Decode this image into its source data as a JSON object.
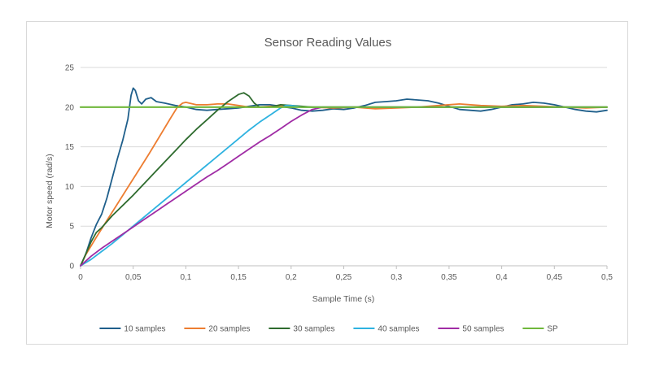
{
  "chart_data": {
    "type": "line",
    "title": "Sensor Reading Values",
    "xlabel": "Sample Time (s)",
    "ylabel": "Motor speed (rad/s)",
    "xlim": [
      0,
      0.5
    ],
    "ylim": [
      0,
      25
    ],
    "x_ticks": [
      "0",
      "0,05",
      "0,1",
      "0,15",
      "0,2",
      "0,25",
      "0,3",
      "0,35",
      "0,4",
      "0,45",
      "0,5"
    ],
    "y_ticks": [
      "0",
      "5",
      "10",
      "15",
      "20",
      "25"
    ],
    "grid": "horizontal",
    "legend_position": "bottom",
    "series": [
      {
        "name": "10 samples",
        "color": "#1f5f8b",
        "points": [
          [
            0,
            0
          ],
          [
            0.005,
            1.5
          ],
          [
            0.01,
            3.5
          ],
          [
            0.015,
            5.2
          ],
          [
            0.02,
            6.5
          ],
          [
            0.025,
            8.5
          ],
          [
            0.03,
            11
          ],
          [
            0.035,
            13.5
          ],
          [
            0.04,
            15.8
          ],
          [
            0.045,
            18.5
          ],
          [
            0.048,
            21.5
          ],
          [
            0.05,
            22.4
          ],
          [
            0.052,
            22.1
          ],
          [
            0.055,
            20.8
          ],
          [
            0.058,
            20.4
          ],
          [
            0.062,
            21.0
          ],
          [
            0.067,
            21.2
          ],
          [
            0.072,
            20.7
          ],
          [
            0.08,
            20.5
          ],
          [
            0.09,
            20.2
          ],
          [
            0.1,
            20.0
          ],
          [
            0.11,
            19.7
          ],
          [
            0.12,
            19.6
          ],
          [
            0.13,
            19.7
          ],
          [
            0.14,
            19.8
          ],
          [
            0.15,
            19.9
          ],
          [
            0.16,
            20.1
          ],
          [
            0.17,
            20.3
          ],
          [
            0.18,
            20.3
          ],
          [
            0.19,
            20.1
          ],
          [
            0.2,
            19.9
          ],
          [
            0.21,
            19.6
          ],
          [
            0.22,
            19.5
          ],
          [
            0.23,
            19.6
          ],
          [
            0.24,
            19.8
          ],
          [
            0.25,
            19.7
          ],
          [
            0.26,
            19.9
          ],
          [
            0.27,
            20.2
          ],
          [
            0.28,
            20.6
          ],
          [
            0.29,
            20.7
          ],
          [
            0.3,
            20.8
          ],
          [
            0.31,
            21.0
          ],
          [
            0.32,
            20.9
          ],
          [
            0.33,
            20.8
          ],
          [
            0.34,
            20.5
          ],
          [
            0.35,
            20.1
          ],
          [
            0.36,
            19.7
          ],
          [
            0.37,
            19.6
          ],
          [
            0.38,
            19.5
          ],
          [
            0.39,
            19.7
          ],
          [
            0.4,
            20.0
          ],
          [
            0.41,
            20.3
          ],
          [
            0.42,
            20.4
          ],
          [
            0.43,
            20.6
          ],
          [
            0.44,
            20.5
          ],
          [
            0.45,
            20.3
          ],
          [
            0.46,
            20.0
          ],
          [
            0.47,
            19.7
          ],
          [
            0.48,
            19.5
          ],
          [
            0.49,
            19.4
          ],
          [
            0.5,
            19.6
          ]
        ]
      },
      {
        "name": "20 samples",
        "color": "#ed7d31",
        "points": [
          [
            0,
            0
          ],
          [
            0.005,
            1.4
          ],
          [
            0.015,
            3.6
          ],
          [
            0.025,
            5.7
          ],
          [
            0.035,
            7.8
          ],
          [
            0.045,
            9.9
          ],
          [
            0.055,
            12.0
          ],
          [
            0.065,
            14.1
          ],
          [
            0.075,
            16.3
          ],
          [
            0.085,
            18.5
          ],
          [
            0.092,
            20.0
          ],
          [
            0.097,
            20.5
          ],
          [
            0.1,
            20.6
          ],
          [
            0.11,
            20.3
          ],
          [
            0.12,
            20.3
          ],
          [
            0.13,
            20.4
          ],
          [
            0.14,
            20.4
          ],
          [
            0.15,
            20.2
          ],
          [
            0.16,
            20.0
          ],
          [
            0.17,
            20.0
          ],
          [
            0.18,
            20.1
          ],
          [
            0.2,
            20.1
          ],
          [
            0.22,
            20.0
          ],
          [
            0.24,
            19.9
          ],
          [
            0.26,
            20.0
          ],
          [
            0.28,
            19.8
          ],
          [
            0.3,
            19.9
          ],
          [
            0.32,
            20.0
          ],
          [
            0.34,
            20.2
          ],
          [
            0.36,
            20.4
          ],
          [
            0.38,
            20.2
          ],
          [
            0.4,
            20.1
          ],
          [
            0.42,
            20.2
          ],
          [
            0.44,
            20.1
          ],
          [
            0.46,
            20.0
          ],
          [
            0.48,
            19.9
          ],
          [
            0.5,
            20.0
          ]
        ]
      },
      {
        "name": "30 samples",
        "color": "#2e6b2e",
        "points": [
          [
            0,
            0
          ],
          [
            0.005,
            1.5
          ],
          [
            0.01,
            3.0
          ],
          [
            0.015,
            4.2
          ],
          [
            0.02,
            4.8
          ],
          [
            0.03,
            6.3
          ],
          [
            0.04,
            7.6
          ],
          [
            0.05,
            8.9
          ],
          [
            0.06,
            10.3
          ],
          [
            0.07,
            11.7
          ],
          [
            0.08,
            13.1
          ],
          [
            0.09,
            14.5
          ],
          [
            0.1,
            15.9
          ],
          [
            0.11,
            17.2
          ],
          [
            0.12,
            18.4
          ],
          [
            0.13,
            19.6
          ],
          [
            0.14,
            20.7
          ],
          [
            0.15,
            21.6
          ],
          [
            0.155,
            21.8
          ],
          [
            0.16,
            21.4
          ],
          [
            0.165,
            20.5
          ],
          [
            0.17,
            20.0
          ],
          [
            0.18,
            20.0
          ],
          [
            0.19,
            20.3
          ],
          [
            0.2,
            20.2
          ],
          [
            0.22,
            20.0
          ],
          [
            0.25,
            20.0
          ],
          [
            0.3,
            20.0
          ],
          [
            0.35,
            20.0
          ],
          [
            0.4,
            20.0
          ],
          [
            0.45,
            20.0
          ],
          [
            0.5,
            20.0
          ]
        ]
      },
      {
        "name": "40 samples",
        "color": "#2eb2e0",
        "points": [
          [
            0,
            0
          ],
          [
            0.01,
            0.8
          ],
          [
            0.02,
            1.8
          ],
          [
            0.03,
            2.8
          ],
          [
            0.04,
            3.9
          ],
          [
            0.05,
            5.0
          ],
          [
            0.06,
            6.1
          ],
          [
            0.07,
            7.2
          ],
          [
            0.08,
            8.3
          ],
          [
            0.09,
            9.4
          ],
          [
            0.1,
            10.5
          ],
          [
            0.11,
            11.6
          ],
          [
            0.12,
            12.7
          ],
          [
            0.13,
            13.8
          ],
          [
            0.14,
            14.9
          ],
          [
            0.15,
            16.0
          ],
          [
            0.16,
            17.1
          ],
          [
            0.17,
            18.1
          ],
          [
            0.18,
            19.0
          ],
          [
            0.19,
            19.9
          ],
          [
            0.195,
            20.2
          ],
          [
            0.2,
            20.2
          ],
          [
            0.21,
            20.0
          ],
          [
            0.25,
            20.0
          ],
          [
            0.3,
            20.0
          ],
          [
            0.35,
            20.0
          ],
          [
            0.4,
            20.0
          ],
          [
            0.45,
            20.0
          ],
          [
            0.5,
            20.0
          ]
        ]
      },
      {
        "name": "50 samples",
        "color": "#a02ca5",
        "points": [
          [
            0,
            0
          ],
          [
            0.01,
            1.2
          ],
          [
            0.02,
            2.2
          ],
          [
            0.03,
            3.1
          ],
          [
            0.04,
            4.0
          ],
          [
            0.05,
            4.9
          ],
          [
            0.06,
            5.8
          ],
          [
            0.07,
            6.7
          ],
          [
            0.08,
            7.6
          ],
          [
            0.09,
            8.5
          ],
          [
            0.1,
            9.4
          ],
          [
            0.11,
            10.3
          ],
          [
            0.12,
            11.2
          ],
          [
            0.13,
            12.0
          ],
          [
            0.14,
            12.9
          ],
          [
            0.15,
            13.8
          ],
          [
            0.16,
            14.7
          ],
          [
            0.17,
            15.6
          ],
          [
            0.18,
            16.4
          ],
          [
            0.19,
            17.3
          ],
          [
            0.2,
            18.2
          ],
          [
            0.21,
            19.0
          ],
          [
            0.22,
            19.7
          ],
          [
            0.23,
            20.0
          ],
          [
            0.25,
            20.0
          ],
          [
            0.3,
            20.0
          ],
          [
            0.35,
            20.0
          ],
          [
            0.4,
            20.0
          ],
          [
            0.45,
            20.0
          ],
          [
            0.5,
            20.0
          ]
        ]
      },
      {
        "name": "SP",
        "color": "#70b83c",
        "points": [
          [
            0,
            20
          ],
          [
            0.5,
            20
          ]
        ]
      }
    ]
  }
}
